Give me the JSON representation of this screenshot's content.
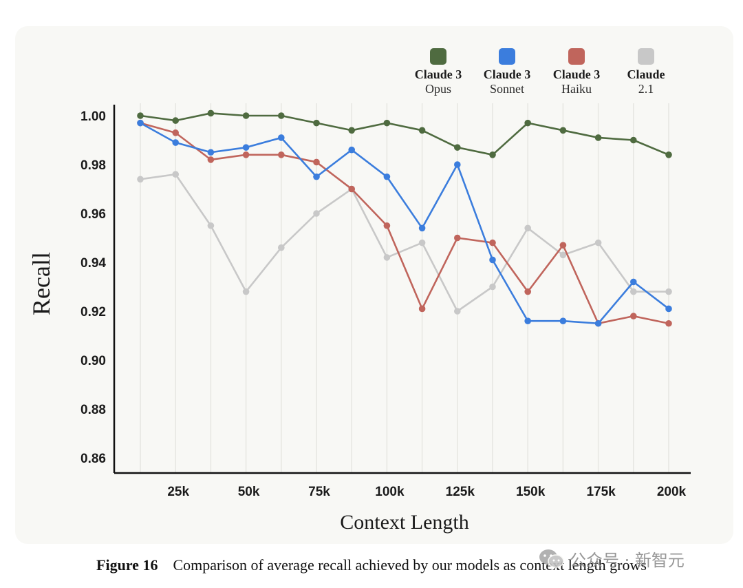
{
  "chart_data": {
    "type": "line",
    "title": "",
    "xlabel": "Context Length",
    "ylabel": "Recall",
    "ylim": [
      0.855,
      1.002
    ],
    "yticks": [
      "1.00",
      "0.98",
      "0.96",
      "0.94",
      "0.92",
      "0.90",
      "0.88",
      "0.86"
    ],
    "xticks": [
      "25k",
      "50k",
      "75k",
      "100k",
      "125k",
      "150k",
      "175k",
      "200k"
    ],
    "grid": "vertical",
    "legend_position": "top-right",
    "x_steps": 16,
    "series": [
      {
        "name": "Claude 3",
        "subname": "Opus",
        "color": "#4f6b40",
        "values": [
          1.0,
          0.998,
          1.001,
          1.0,
          1.0,
          0.997,
          0.994,
          0.997,
          0.994,
          0.987,
          0.984,
          0.997,
          0.994,
          0.991,
          0.99,
          0.984
        ]
      },
      {
        "name": "Claude 3",
        "subname": "Sonnet",
        "color": "#3b7ddd",
        "values": [
          0.997,
          0.989,
          0.985,
          0.987,
          0.991,
          0.975,
          0.986,
          0.975,
          0.954,
          0.98,
          0.941,
          0.916,
          0.916,
          0.915,
          0.932,
          0.921
        ]
      },
      {
        "name": "Claude 3",
        "subname": "Haiku",
        "color": "#c0655c",
        "values": [
          0.997,
          0.993,
          0.982,
          0.984,
          0.984,
          0.981,
          0.97,
          0.955,
          0.921,
          0.95,
          0.948,
          0.928,
          0.947,
          0.915,
          0.918,
          0.915
        ]
      },
      {
        "name": "Claude",
        "subname": "2.1",
        "color": "#c8c8c8",
        "values": [
          0.974,
          0.976,
          0.955,
          0.928,
          0.946,
          0.96,
          0.97,
          0.942,
          0.948,
          0.92,
          0.93,
          0.954,
          0.943,
          0.948,
          0.928,
          0.928
        ]
      }
    ]
  },
  "caption": {
    "label": "Figure 16",
    "text": "Comparison of average recall achieved by our models as context length grows"
  },
  "watermark": {
    "text": "公众号 · 新智元"
  }
}
